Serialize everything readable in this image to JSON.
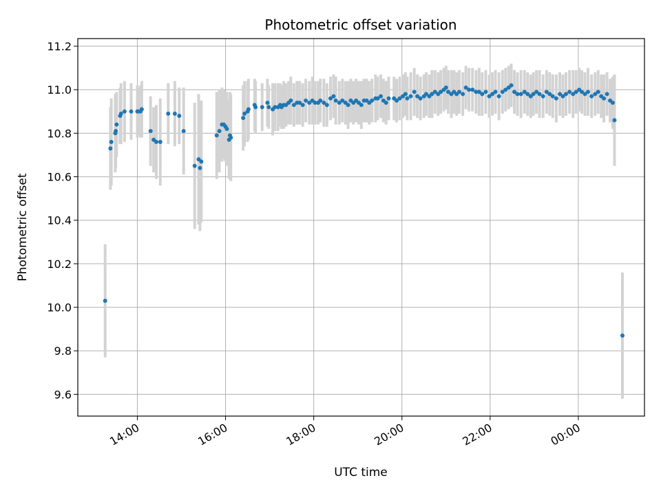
{
  "chart_data": {
    "type": "scatter",
    "title": "Photometric offset variation",
    "xlabel": "UTC time",
    "ylabel": "Photometric offset",
    "x_unit": "UTC time (hours; values >= 24 are after midnight)",
    "xlim": [
      12.65,
      25.5
    ],
    "ylim": [
      9.5,
      11.235
    ],
    "x_ticks": [
      {
        "value": 14,
        "label": "14:00"
      },
      {
        "value": 16,
        "label": "16:00"
      },
      {
        "value": 18,
        "label": "18:00"
      },
      {
        "value": 20,
        "label": "20:00"
      },
      {
        "value": 22,
        "label": "22:00"
      },
      {
        "value": 24,
        "label": "00:00"
      }
    ],
    "y_ticks": [
      {
        "value": 9.6,
        "label": "9.6"
      },
      {
        "value": 9.8,
        "label": "9.8"
      },
      {
        "value": 10.0,
        "label": "10.0"
      },
      {
        "value": 10.2,
        "label": "10.2"
      },
      {
        "value": 10.4,
        "label": "10.4"
      },
      {
        "value": 10.6,
        "label": "10.6"
      },
      {
        "value": 10.8,
        "label": "10.8"
      },
      {
        "value": 11.0,
        "label": "11.0"
      },
      {
        "value": 11.2,
        "label": "11.2"
      }
    ],
    "grid": true,
    "colors": {
      "points": "#1f77b4",
      "errorbars": "#d3d3d3",
      "grid": "#b0b0b0"
    },
    "points": [
      [
        13.27,
        10.03,
        0.26
      ],
      [
        13.39,
        10.73,
        0.19
      ],
      [
        13.41,
        10.76,
        0.2
      ],
      [
        13.5,
        10.8,
        0.18
      ],
      [
        13.51,
        10.81,
        0.17
      ],
      [
        13.53,
        10.84,
        0.15
      ],
      [
        13.61,
        10.88,
        0.13
      ],
      [
        13.63,
        10.89,
        0.14
      ],
      [
        13.71,
        10.9,
        0.14
      ],
      [
        13.86,
        10.9,
        0.13
      ],
      [
        14.0,
        10.9,
        0.12
      ],
      [
        14.02,
        10.9,
        0.11
      ],
      [
        14.07,
        10.9,
        0.12
      ],
      [
        14.1,
        10.91,
        0.13
      ],
      [
        14.3,
        10.81,
        0.16
      ],
      [
        14.37,
        10.77,
        0.15
      ],
      [
        14.43,
        10.76,
        0.17
      ],
      [
        14.52,
        10.76,
        0.2
      ],
      [
        14.7,
        10.89,
        0.14
      ],
      [
        14.85,
        10.89,
        0.15
      ],
      [
        14.95,
        10.88,
        0.13
      ],
      [
        15.05,
        10.81,
        0.2
      ],
      [
        15.3,
        10.65,
        0.29
      ],
      [
        15.39,
        10.68,
        0.3
      ],
      [
        15.42,
        10.64,
        0.29
      ],
      [
        15.45,
        10.67,
        0.28
      ],
      [
        15.8,
        10.79,
        0.2
      ],
      [
        15.86,
        10.81,
        0.19
      ],
      [
        15.92,
        10.84,
        0.17
      ],
      [
        15.96,
        10.84,
        0.16
      ],
      [
        16.0,
        10.83,
        0.16
      ],
      [
        16.03,
        10.82,
        0.17
      ],
      [
        16.08,
        10.77,
        0.18
      ],
      [
        16.1,
        10.79,
        0.2
      ],
      [
        16.12,
        10.78,
        0.2
      ],
      [
        16.4,
        10.87,
        0.15
      ],
      [
        16.43,
        10.89,
        0.15
      ],
      [
        16.5,
        10.9,
        0.14
      ],
      [
        16.52,
        10.91,
        0.14
      ],
      [
        16.66,
        10.93,
        0.12
      ],
      [
        16.68,
        10.92,
        0.12
      ],
      [
        16.83,
        10.92,
        0.11
      ],
      [
        16.95,
        10.94,
        0.11
      ],
      [
        16.98,
        10.92,
        0.1
      ],
      [
        17.07,
        10.91,
        0.12
      ],
      [
        17.12,
        10.92,
        0.11
      ],
      [
        17.19,
        10.92,
        0.11
      ],
      [
        17.24,
        10.93,
        0.1
      ],
      [
        17.27,
        10.92,
        0.1
      ],
      [
        17.32,
        10.93,
        0.11
      ],
      [
        17.37,
        10.93,
        0.1
      ],
      [
        17.43,
        10.94,
        0.1
      ],
      [
        17.48,
        10.95,
        0.11
      ],
      [
        17.55,
        10.93,
        0.1
      ],
      [
        17.62,
        10.94,
        0.1
      ],
      [
        17.68,
        10.94,
        0.1
      ],
      [
        17.75,
        10.93,
        0.1
      ],
      [
        17.82,
        10.95,
        0.1
      ],
      [
        17.9,
        10.94,
        0.1
      ],
      [
        17.97,
        10.95,
        0.11
      ],
      [
        18.03,
        10.94,
        0.1
      ],
      [
        18.1,
        10.94,
        0.1
      ],
      [
        18.15,
        10.95,
        0.1
      ],
      [
        18.23,
        10.94,
        0.11
      ],
      [
        18.3,
        10.93,
        0.1
      ],
      [
        18.38,
        10.96,
        0.1
      ],
      [
        18.45,
        10.97,
        0.1
      ],
      [
        18.5,
        10.95,
        0.11
      ],
      [
        18.58,
        10.94,
        0.1
      ],
      [
        18.65,
        10.95,
        0.1
      ],
      [
        18.72,
        10.94,
        0.1
      ],
      [
        18.78,
        10.93,
        0.11
      ],
      [
        18.84,
        10.95,
        0.1
      ],
      [
        18.9,
        10.94,
        0.1
      ],
      [
        18.96,
        10.95,
        0.1
      ],
      [
        19.02,
        10.94,
        0.1
      ],
      [
        19.08,
        10.93,
        0.11
      ],
      [
        19.14,
        10.95,
        0.1
      ],
      [
        19.2,
        10.95,
        0.1
      ],
      [
        19.26,
        10.94,
        0.1
      ],
      [
        19.32,
        10.95,
        0.1
      ],
      [
        19.4,
        10.96,
        0.11
      ],
      [
        19.45,
        10.96,
        0.1
      ],
      [
        19.52,
        10.97,
        0.1
      ],
      [
        19.58,
        10.95,
        0.1
      ],
      [
        19.64,
        10.94,
        0.1
      ],
      [
        19.7,
        10.96,
        0.1
      ],
      [
        19.82,
        10.96,
        0.1
      ],
      [
        19.88,
        10.95,
        0.1
      ],
      [
        19.95,
        10.96,
        0.1
      ],
      [
        20.02,
        10.97,
        0.1
      ],
      [
        20.08,
        10.98,
        0.1
      ],
      [
        20.12,
        10.96,
        0.1
      ],
      [
        20.2,
        10.97,
        0.11
      ],
      [
        20.28,
        10.99,
        0.11
      ],
      [
        20.35,
        10.97,
        0.1
      ],
      [
        20.42,
        10.96,
        0.1
      ],
      [
        20.5,
        10.97,
        0.1
      ],
      [
        20.55,
        10.98,
        0.1
      ],
      [
        20.62,
        10.97,
        0.1
      ],
      [
        20.68,
        10.98,
        0.11
      ],
      [
        20.75,
        10.99,
        0.1
      ],
      [
        20.82,
        10.98,
        0.1
      ],
      [
        20.88,
        10.99,
        0.1
      ],
      [
        20.95,
        11.0,
        0.1
      ],
      [
        21.0,
        11.01,
        0.1
      ],
      [
        21.05,
        10.99,
        0.1
      ],
      [
        21.12,
        10.98,
        0.11
      ],
      [
        21.18,
        10.99,
        0.1
      ],
      [
        21.24,
        10.98,
        0.1
      ],
      [
        21.3,
        10.99,
        0.1
      ],
      [
        21.38,
        10.98,
        0.1
      ],
      [
        21.45,
        11.01,
        0.1
      ],
      [
        21.52,
        11.0,
        0.1
      ],
      [
        21.6,
        11.0,
        0.1
      ],
      [
        21.68,
        10.99,
        0.1
      ],
      [
        21.75,
        10.99,
        0.11
      ],
      [
        21.82,
        10.98,
        0.1
      ],
      [
        21.9,
        10.99,
        0.1
      ],
      [
        21.98,
        10.97,
        0.1
      ],
      [
        22.05,
        10.98,
        0.1
      ],
      [
        22.12,
        10.99,
        0.1
      ],
      [
        22.2,
        10.97,
        0.11
      ],
      [
        22.28,
        10.99,
        0.1
      ],
      [
        22.35,
        11.0,
        0.1
      ],
      [
        22.42,
        11.01,
        0.1
      ],
      [
        22.48,
        11.02,
        0.1
      ],
      [
        22.55,
        10.99,
        0.1
      ],
      [
        22.62,
        10.98,
        0.1
      ],
      [
        22.7,
        10.98,
        0.11
      ],
      [
        22.78,
        10.99,
        0.1
      ],
      [
        22.85,
        10.98,
        0.1
      ],
      [
        22.92,
        10.97,
        0.1
      ],
      [
        22.98,
        10.98,
        0.1
      ],
      [
        23.05,
        10.99,
        0.1
      ],
      [
        23.12,
        10.98,
        0.11
      ],
      [
        23.2,
        10.97,
        0.1
      ],
      [
        23.28,
        10.99,
        0.1
      ],
      [
        23.35,
        10.98,
        0.1
      ],
      [
        23.42,
        10.97,
        0.1
      ],
      [
        23.5,
        10.96,
        0.11
      ],
      [
        23.58,
        10.98,
        0.1
      ],
      [
        23.65,
        10.97,
        0.1
      ],
      [
        23.72,
        10.98,
        0.1
      ],
      [
        23.8,
        10.99,
        0.1
      ],
      [
        23.88,
        10.98,
        0.11
      ],
      [
        23.95,
        10.99,
        0.1
      ],
      [
        24.02,
        11.0,
        0.1
      ],
      [
        24.08,
        10.99,
        0.1
      ],
      [
        24.15,
        10.98,
        0.1
      ],
      [
        24.22,
        10.99,
        0.11
      ],
      [
        24.3,
        10.97,
        0.1
      ],
      [
        24.38,
        10.98,
        0.1
      ],
      [
        24.45,
        10.99,
        0.1
      ],
      [
        24.52,
        10.97,
        0.1
      ],
      [
        24.58,
        10.96,
        0.11
      ],
      [
        24.65,
        10.98,
        0.1
      ],
      [
        24.72,
        10.95,
        0.1
      ],
      [
        24.78,
        10.94,
        0.12
      ],
      [
        24.82,
        10.86,
        0.21
      ],
      [
        25.0,
        9.87,
        0.29
      ]
    ]
  }
}
